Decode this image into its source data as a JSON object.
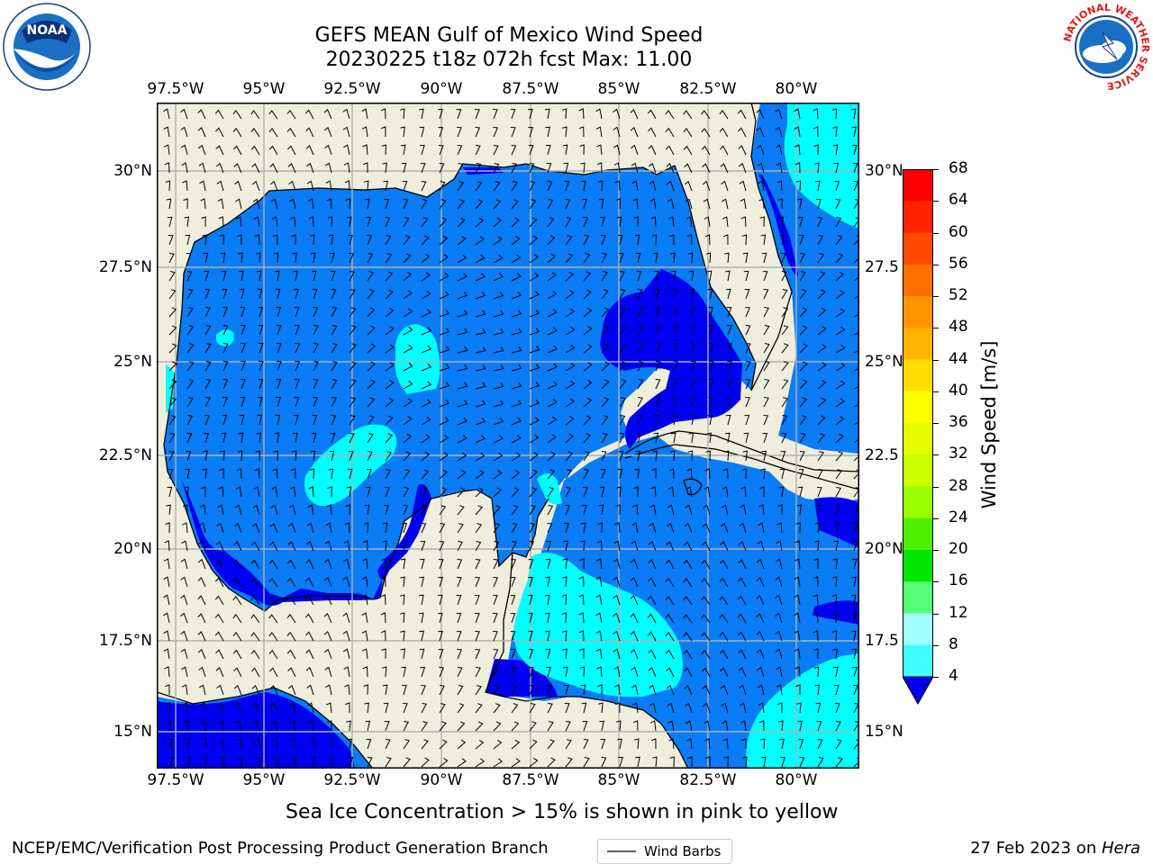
{
  "header": {
    "title_line1": "GEFS MEAN Gulf of Mexico Wind Speed",
    "title_line2": "20230225 t18z 072h fcst   Max: 11.00"
  },
  "logos": {
    "noaa": "NOAA",
    "nws_ring": "NATIONAL WEATHER SERVICE"
  },
  "map": {
    "lon_labels": [
      "97.5°W",
      "95°W",
      "92.5°W",
      "90°W",
      "87.5°W",
      "85°W",
      "82.5°W",
      "80°W"
    ],
    "lat_labels_left": [
      "30°N",
      "27.5°N",
      "25°N",
      "22.5°N",
      "20°N",
      "17.5°N",
      "15°N"
    ],
    "lat_labels_right": [
      "30°N",
      "27.5",
      "25°N",
      "22.5",
      "20°N",
      "17.5",
      "15°N"
    ],
    "legend_label": "Wind Barbs",
    "colors": {
      "land": "#efeedc",
      "speed_4_8": "#0a7cf6",
      "speed_below_4": "#0000f0",
      "speed_8_12": "#00ffff",
      "grid": "#b0b0b0"
    }
  },
  "colorbar": {
    "label": "Wind Speed [m/s]",
    "ticks": [
      "68",
      "64",
      "60",
      "56",
      "52",
      "48",
      "44",
      "40",
      "36",
      "32",
      "28",
      "24",
      "20",
      "16",
      "12",
      "8",
      "4"
    ],
    "colors": [
      "#ff0000",
      "#ff2400",
      "#ff4a00",
      "#ff6e00",
      "#ff9400",
      "#ffb400",
      "#ffdc00",
      "#ffff00",
      "#e6ff00",
      "#ccff00",
      "#99ff00",
      "#4cf000",
      "#00e600",
      "#55ff77",
      "#a0ffff",
      "#40ffff",
      "#00ffff",
      "#0a7cf6",
      "#0000f0"
    ]
  },
  "caption": "Sea Ice Concentration > 15% is shown in pink to yellow",
  "footer": {
    "left": "NCEP/EMC/Verification Post Processing Product Generation Branch",
    "date": "27 Feb 2023 on ",
    "machine": "Hera"
  }
}
